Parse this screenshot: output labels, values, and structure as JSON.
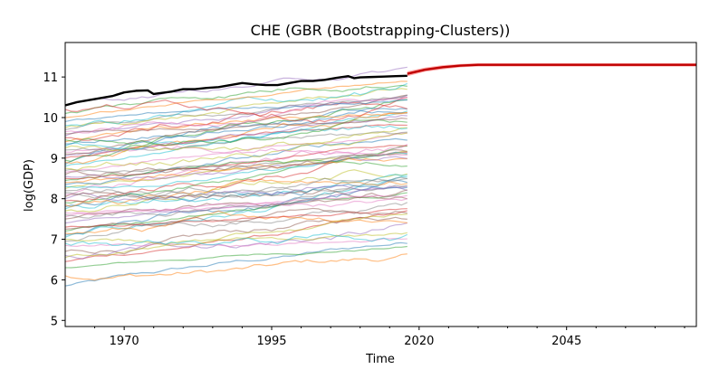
{
  "chart_data": {
    "type": "line",
    "title": "CHE (GBR (Bootstrapping-Clusters))",
    "xlabel": "Time",
    "ylabel": "log(GDP)",
    "xlim": [
      1960,
      2067
    ],
    "ylim": [
      4.85,
      11.85
    ],
    "x_ticks": [
      1970,
      1995,
      2020,
      2045
    ],
    "y_ticks": [
      5,
      6,
      7,
      8,
      9,
      10,
      11
    ],
    "grid": false,
    "legend": "none",
    "background_series": {
      "x_range": [
        1960,
        2018
      ],
      "count": 70,
      "y_starts": [
        5.85,
        6.1,
        6.3,
        6.45,
        6.6,
        6.7,
        6.85,
        6.95,
        7.0,
        7.05,
        7.1,
        7.15,
        7.2,
        7.3,
        7.4,
        7.5,
        7.55,
        7.6,
        7.7,
        7.75,
        7.8,
        7.85,
        7.9,
        7.95,
        8.0,
        8.05,
        8.1,
        8.2,
        8.25,
        8.3,
        8.35,
        8.4,
        8.45,
        8.5,
        8.55,
        8.6,
        8.65,
        8.7,
        8.75,
        8.8,
        8.85,
        8.9,
        8.95,
        9.0,
        9.05,
        9.1,
        9.15,
        9.2,
        9.25,
        9.3,
        9.35,
        9.4,
        9.45,
        9.5,
        9.55,
        9.6,
        9.65,
        9.7,
        9.75,
        9.8,
        9.9,
        10.0,
        10.1,
        10.2,
        10.3,
        7.25,
        7.65,
        8.15,
        6.55,
        6.9
      ],
      "colors": [
        "#1f77b4",
        "#ff7f0e",
        "#2ca02c",
        "#d62728",
        "#9467bd",
        "#8c564b",
        "#e377c2",
        "#7f7f7f",
        "#bcbd22",
        "#17becf"
      ],
      "opacity": 0.5
    },
    "series": [
      {
        "x": [
          1960,
          1962,
          1964,
          1966,
          1968,
          1970,
          1972,
          1974,
          1975,
          1976,
          1978,
          1980,
          1982,
          1984,
          1986,
          1988,
          1990,
          1992,
          1994,
          1996,
          1998,
          2000,
          2002,
          2004,
          2006,
          2008,
          2009,
          2010,
          2012,
          2014,
          2016,
          2018
        ],
        "values": [
          10.3,
          10.38,
          10.43,
          10.48,
          10.53,
          10.62,
          10.66,
          10.67,
          10.58,
          10.6,
          10.64,
          10.7,
          10.7,
          10.73,
          10.75,
          10.8,
          10.85,
          10.82,
          10.8,
          10.8,
          10.85,
          10.9,
          10.9,
          10.93,
          10.98,
          11.02,
          10.97,
          10.99,
          11.0,
          11.01,
          11.02,
          11.03
        ],
        "color": "#000000"
      },
      {
        "x": [
          2018,
          2021,
          2024,
          2027,
          2030,
          2033,
          2036,
          2039,
          2042,
          2045,
          2048,
          2051,
          2054,
          2057,
          2060,
          2063,
          2067
        ],
        "values": [
          11.08,
          11.18,
          11.24,
          11.28,
          11.3,
          11.3,
          11.3,
          11.3,
          11.3,
          11.3,
          11.3,
          11.3,
          11.3,
          11.3,
          11.3,
          11.3,
          11.3
        ],
        "band": [
          0.06,
          0.05,
          0.05,
          0.04,
          0.04,
          0.04,
          0.04,
          0.04,
          0.04,
          0.04,
          0.04,
          0.04,
          0.04,
          0.04,
          0.04,
          0.04,
          0.04
        ],
        "color": "#c00000"
      }
    ]
  }
}
